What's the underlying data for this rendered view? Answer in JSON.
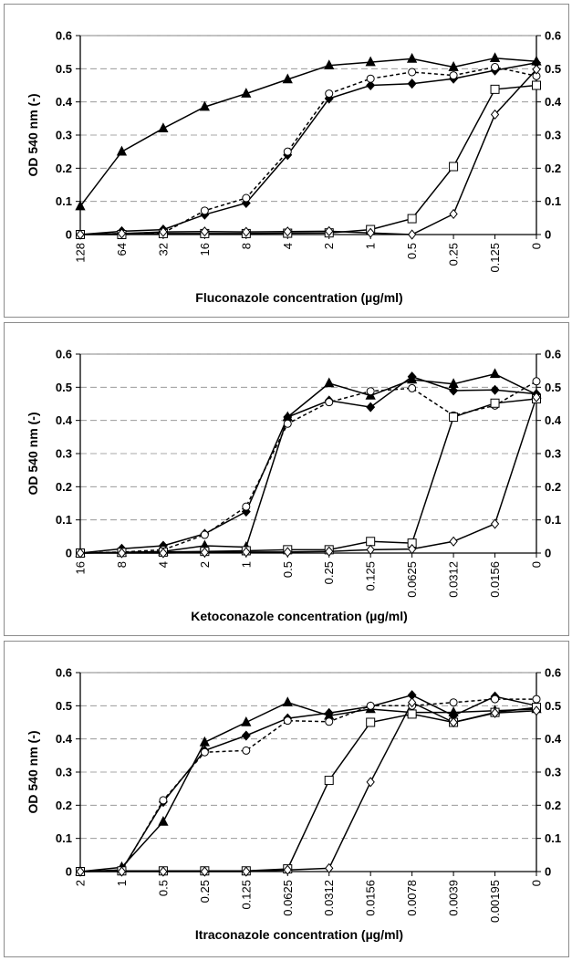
{
  "chart_data": [
    {
      "type": "line",
      "xlabel": "Fluconazole concentration (µg/ml)",
      "ylabel": "OD 540 nm (-)",
      "ylim": [
        0,
        0.6
      ],
      "yticks": [
        "0",
        "0.1",
        "0.2",
        "0.3",
        "0.4",
        "0.5",
        "0.6"
      ],
      "categories": [
        "128",
        "64",
        "32",
        "16",
        "8",
        "4",
        "2",
        "1",
        "0.5",
        "0.25",
        "0.125",
        "0"
      ],
      "grid": true,
      "series": [
        {
          "marker": "triangle-filled",
          "dash": "solid",
          "values": [
            0.085,
            0.25,
            0.32,
            0.385,
            0.425,
            0.468,
            0.51,
            0.52,
            0.53,
            0.505,
            0.532,
            0.522
          ]
        },
        {
          "marker": "diamond-filled",
          "dash": "solid",
          "values": [
            0.0,
            0.01,
            0.015,
            0.06,
            0.095,
            0.24,
            0.41,
            0.45,
            0.455,
            0.47,
            0.495,
            0.518
          ]
        },
        {
          "marker": "circle-open",
          "dash": "dashed",
          "values": [
            0.0,
            0.003,
            0.005,
            0.072,
            0.11,
            0.25,
            0.425,
            0.47,
            0.49,
            0.48,
            0.505,
            0.478
          ]
        },
        {
          "marker": "square-open",
          "dash": "solid",
          "values": [
            0.0,
            0.0,
            0.003,
            0.003,
            0.003,
            0.004,
            0.005,
            0.015,
            0.048,
            0.205,
            0.438,
            0.45
          ]
        },
        {
          "marker": "diamond-open",
          "dash": "solid",
          "values": [
            0.0,
            0.003,
            0.008,
            0.009,
            0.008,
            0.009,
            0.01,
            0.005,
            0.0,
            0.062,
            0.362,
            0.498
          ]
        }
      ]
    },
    {
      "type": "line",
      "xlabel": "Ketoconazole concentration (µg/ml)",
      "ylabel": "OD 540 nm (-)",
      "ylim": [
        0,
        0.6
      ],
      "yticks": [
        "0",
        "0.1",
        "0.2",
        "0.3",
        "0.4",
        "0.5",
        "0.6"
      ],
      "categories": [
        "16",
        "8",
        "4",
        "2",
        "1",
        "0.5",
        "0.25",
        "0.125",
        "0.0625",
        "0.0312",
        "0.0156",
        "0"
      ],
      "grid": true,
      "series": [
        {
          "marker": "triangle-filled",
          "dash": "solid",
          "values": [
            0.0,
            0.002,
            0.005,
            0.022,
            0.018,
            0.41,
            0.512,
            0.475,
            0.523,
            0.51,
            0.54,
            0.478
          ]
        },
        {
          "marker": "diamond-filled",
          "dash": "solid",
          "values": [
            0.0,
            0.013,
            0.022,
            0.058,
            0.125,
            0.41,
            0.46,
            0.44,
            0.532,
            0.49,
            0.492,
            0.48
          ]
        },
        {
          "marker": "circle-open",
          "dash": "dashed",
          "values": [
            0.0,
            0.003,
            0.01,
            0.055,
            0.14,
            0.39,
            0.455,
            0.488,
            0.497,
            0.415,
            0.445,
            0.518
          ]
        },
        {
          "marker": "square-open",
          "dash": "solid",
          "values": [
            0.0,
            0.002,
            0.003,
            0.005,
            0.007,
            0.01,
            0.01,
            0.035,
            0.03,
            0.41,
            0.452,
            0.465
          ]
        },
        {
          "marker": "diamond-open",
          "dash": "solid",
          "values": [
            0.0,
            0.0,
            0.0,
            0.002,
            0.003,
            0.003,
            0.005,
            0.01,
            0.012,
            0.035,
            0.088,
            0.47
          ]
        }
      ]
    },
    {
      "type": "line",
      "xlabel": "Itraconazole concentration (µg/ml)",
      "ylabel": "OD 540 nm (-)",
      "ylim": [
        0,
        0.6
      ],
      "yticks": [
        "0",
        "0.1",
        "0.2",
        "0.3",
        "0.4",
        "0.5",
        "0.6"
      ],
      "categories": [
        "2",
        "1",
        "0.5",
        "0.25",
        "0.125",
        "0.0625",
        "0.0312",
        "0.0156",
        "0.0078",
        "0.0039",
        "0.00195",
        "0"
      ],
      "grid": true,
      "series": [
        {
          "marker": "triangle-filled",
          "dash": "solid",
          "values": [
            0.0,
            0.013,
            0.15,
            0.39,
            0.45,
            0.51,
            0.47,
            0.49,
            0.48,
            0.48,
            0.485,
            0.49
          ]
        },
        {
          "marker": "diamond-filled",
          "dash": "solid",
          "values": [
            0.0,
            0.005,
            0.21,
            0.365,
            0.41,
            0.462,
            0.478,
            0.498,
            0.532,
            0.47,
            0.528,
            0.5
          ]
        },
        {
          "marker": "circle-open",
          "dash": "dashed",
          "values": [
            0.0,
            0.002,
            0.215,
            0.36,
            0.365,
            0.455,
            0.452,
            0.5,
            0.5,
            0.51,
            0.52,
            0.52
          ]
        },
        {
          "marker": "square-open",
          "dash": "solid",
          "values": [
            0.0,
            0.002,
            0.002,
            0.002,
            0.002,
            0.008,
            0.275,
            0.45,
            0.475,
            0.45,
            0.48,
            0.495
          ]
        },
        {
          "marker": "diamond-open",
          "dash": "solid",
          "values": [
            0.0,
            0.0,
            0.0,
            0.0,
            0.0,
            0.005,
            0.01,
            0.27,
            0.51,
            0.45,
            0.478,
            0.485
          ]
        }
      ]
    }
  ]
}
